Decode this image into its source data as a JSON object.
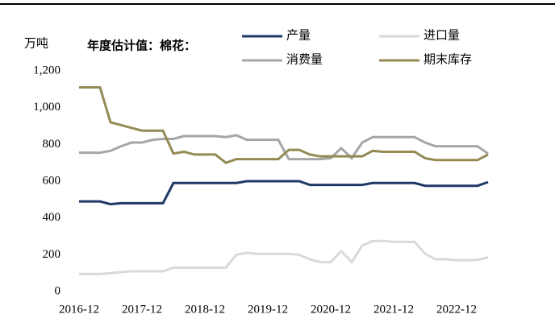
{
  "chart_data": {
    "type": "line",
    "title": "年度估计值：棉花：",
    "y_label": "万吨",
    "legend": "top",
    "categories": [
      "2016-12",
      null,
      null,
      null,
      null,
      null,
      "2017-12",
      null,
      null,
      null,
      null,
      null,
      "2018-12",
      null,
      null,
      null,
      null,
      null,
      "2019-12",
      null,
      null,
      null,
      null,
      null,
      "2020-12",
      null,
      null,
      null,
      null,
      null,
      "2021-12",
      null,
      null,
      null,
      null,
      null,
      "2022-12",
      null,
      null,
      null
    ],
    "ylim": [
      0,
      1200
    ],
    "yticks": [
      0,
      200,
      400,
      600,
      800,
      {
        "value": 1000,
        "label": "1,000"
      },
      {
        "value": 1200,
        "label": "1,200"
      }
    ],
    "series": [
      {
        "name": "产量",
        "color": "#1f3864",
        "values": [
          490,
          490,
          490,
          475,
          480,
          480,
          480,
          480,
          480,
          590,
          590,
          590,
          590,
          590,
          590,
          590,
          600,
          600,
          600,
          600,
          600,
          600,
          580,
          580,
          580,
          580,
          580,
          580,
          590,
          590,
          590,
          590,
          590,
          575,
          575,
          575,
          575,
          575,
          575,
          595
        ]
      },
      {
        "name": "进口量",
        "color": "#d9d9d9",
        "values": [
          95,
          95,
          95,
          100,
          105,
          110,
          110,
          110,
          110,
          130,
          130,
          130,
          130,
          130,
          130,
          200,
          210,
          205,
          205,
          205,
          205,
          200,
          175,
          160,
          160,
          220,
          160,
          250,
          275,
          275,
          270,
          270,
          270,
          205,
          175,
          175,
          170,
          170,
          172,
          185
        ]
      },
      {
        "name": "消费量",
        "color": "#a6a6a6",
        "values": [
          755,
          755,
          755,
          765,
          790,
          810,
          810,
          825,
          830,
          830,
          845,
          845,
          845,
          845,
          840,
          850,
          825,
          825,
          825,
          825,
          720,
          720,
          720,
          720,
          725,
          780,
          725,
          810,
          840,
          840,
          840,
          840,
          840,
          810,
          790,
          790,
          790,
          790,
          790,
          750
        ]
      },
      {
        "name": "期末库存",
        "color": "#948a54",
        "values": [
          1110,
          1110,
          1110,
          920,
          905,
          890,
          875,
          875,
          875,
          750,
          760,
          745,
          745,
          745,
          700,
          720,
          720,
          720,
          720,
          720,
          770,
          770,
          745,
          735,
          735,
          735,
          735,
          735,
          765,
          760,
          760,
          760,
          760,
          725,
          715,
          715,
          715,
          715,
          715,
          745
        ]
      }
    ]
  }
}
